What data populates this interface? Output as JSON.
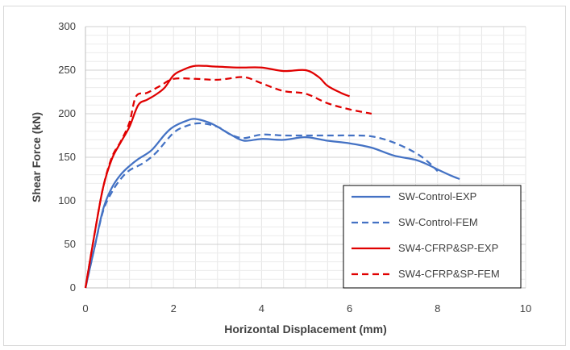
{
  "chart_data": {
    "type": "line",
    "title": "",
    "xlabel": "Horizontal Displacement (mm)",
    "ylabel": "Shear Force (kN)",
    "xlim": [
      0,
      10
    ],
    "ylim": [
      0,
      300
    ],
    "x_ticks": [
      "0",
      "2",
      "4",
      "6",
      "8",
      "10"
    ],
    "y_ticks": [
      "0",
      "50",
      "100",
      "150",
      "200",
      "250",
      "300"
    ],
    "grid": true,
    "legend_position": "bottom-right",
    "series": [
      {
        "name": "SW-Control-EXP",
        "color": "#4472c4",
        "dash": "solid",
        "points": [
          [
            0,
            0
          ],
          [
            0.2,
            45
          ],
          [
            0.4,
            90
          ],
          [
            0.6,
            115
          ],
          [
            0.8,
            130
          ],
          [
            1.0,
            140
          ],
          [
            1.2,
            148
          ],
          [
            1.5,
            158
          ],
          [
            1.8,
            176
          ],
          [
            2.0,
            185
          ],
          [
            2.3,
            192
          ],
          [
            2.5,
            194
          ],
          [
            2.8,
            190
          ],
          [
            3.0,
            185
          ],
          [
            3.3,
            176
          ],
          [
            3.6,
            169
          ],
          [
            4.0,
            171
          ],
          [
            4.5,
            170
          ],
          [
            5.0,
            173
          ],
          [
            5.5,
            169
          ],
          [
            6.0,
            166
          ],
          [
            6.5,
            161
          ],
          [
            7.0,
            152
          ],
          [
            7.5,
            147
          ],
          [
            7.8,
            141
          ],
          [
            8.0,
            136
          ],
          [
            8.3,
            129
          ],
          [
            8.5,
            125
          ]
        ]
      },
      {
        "name": "SW-Control-FEM",
        "color": "#4472c4",
        "dash": "dashed",
        "points": [
          [
            0,
            0
          ],
          [
            0.2,
            45
          ],
          [
            0.4,
            88
          ],
          [
            0.6,
            110
          ],
          [
            0.8,
            125
          ],
          [
            1.0,
            135
          ],
          [
            1.3,
            143
          ],
          [
            1.6,
            155
          ],
          [
            2.0,
            178
          ],
          [
            2.3,
            186
          ],
          [
            2.6,
            189
          ],
          [
            3.0,
            185
          ],
          [
            3.3,
            176
          ],
          [
            3.6,
            172
          ],
          [
            4.0,
            176
          ],
          [
            4.5,
            175
          ],
          [
            5.0,
            175
          ],
          [
            5.5,
            175
          ],
          [
            6.0,
            175
          ],
          [
            6.5,
            174
          ],
          [
            7.0,
            167
          ],
          [
            7.5,
            155
          ],
          [
            7.8,
            144
          ],
          [
            8.0,
            134
          ]
        ]
      },
      {
        "name": "SW4-CFRP&SP-EXP",
        "color": "#e00000",
        "dash": "solid",
        "points": [
          [
            0,
            0
          ],
          [
            0.2,
            60
          ],
          [
            0.4,
            115
          ],
          [
            0.6,
            148
          ],
          [
            0.8,
            167
          ],
          [
            1.0,
            185
          ],
          [
            1.2,
            210
          ],
          [
            1.4,
            216
          ],
          [
            1.6,
            222
          ],
          [
            1.8,
            230
          ],
          [
            2.0,
            244
          ],
          [
            2.2,
            250
          ],
          [
            2.5,
            255
          ],
          [
            3.0,
            254
          ],
          [
            3.5,
            253
          ],
          [
            4.0,
            253
          ],
          [
            4.5,
            249
          ],
          [
            5.0,
            250
          ],
          [
            5.3,
            242
          ],
          [
            5.5,
            232
          ],
          [
            5.8,
            224
          ],
          [
            6.0,
            220
          ]
        ]
      },
      {
        "name": "SW4-CFRP&SP-FEM",
        "color": "#e00000",
        "dash": "dashed",
        "points": [
          [
            0,
            0
          ],
          [
            0.2,
            60
          ],
          [
            0.4,
            115
          ],
          [
            0.6,
            150
          ],
          [
            0.8,
            168
          ],
          [
            1.0,
            190
          ],
          [
            1.15,
            220
          ],
          [
            1.4,
            224
          ],
          [
            1.7,
            232
          ],
          [
            2.0,
            240
          ],
          [
            2.5,
            240
          ],
          [
            3.0,
            239
          ],
          [
            3.5,
            242
          ],
          [
            3.7,
            241
          ],
          [
            4.0,
            235
          ],
          [
            4.5,
            226
          ],
          [
            5.0,
            223
          ],
          [
            5.5,
            212
          ],
          [
            6.0,
            205
          ],
          [
            6.5,
            200
          ]
        ]
      }
    ]
  }
}
